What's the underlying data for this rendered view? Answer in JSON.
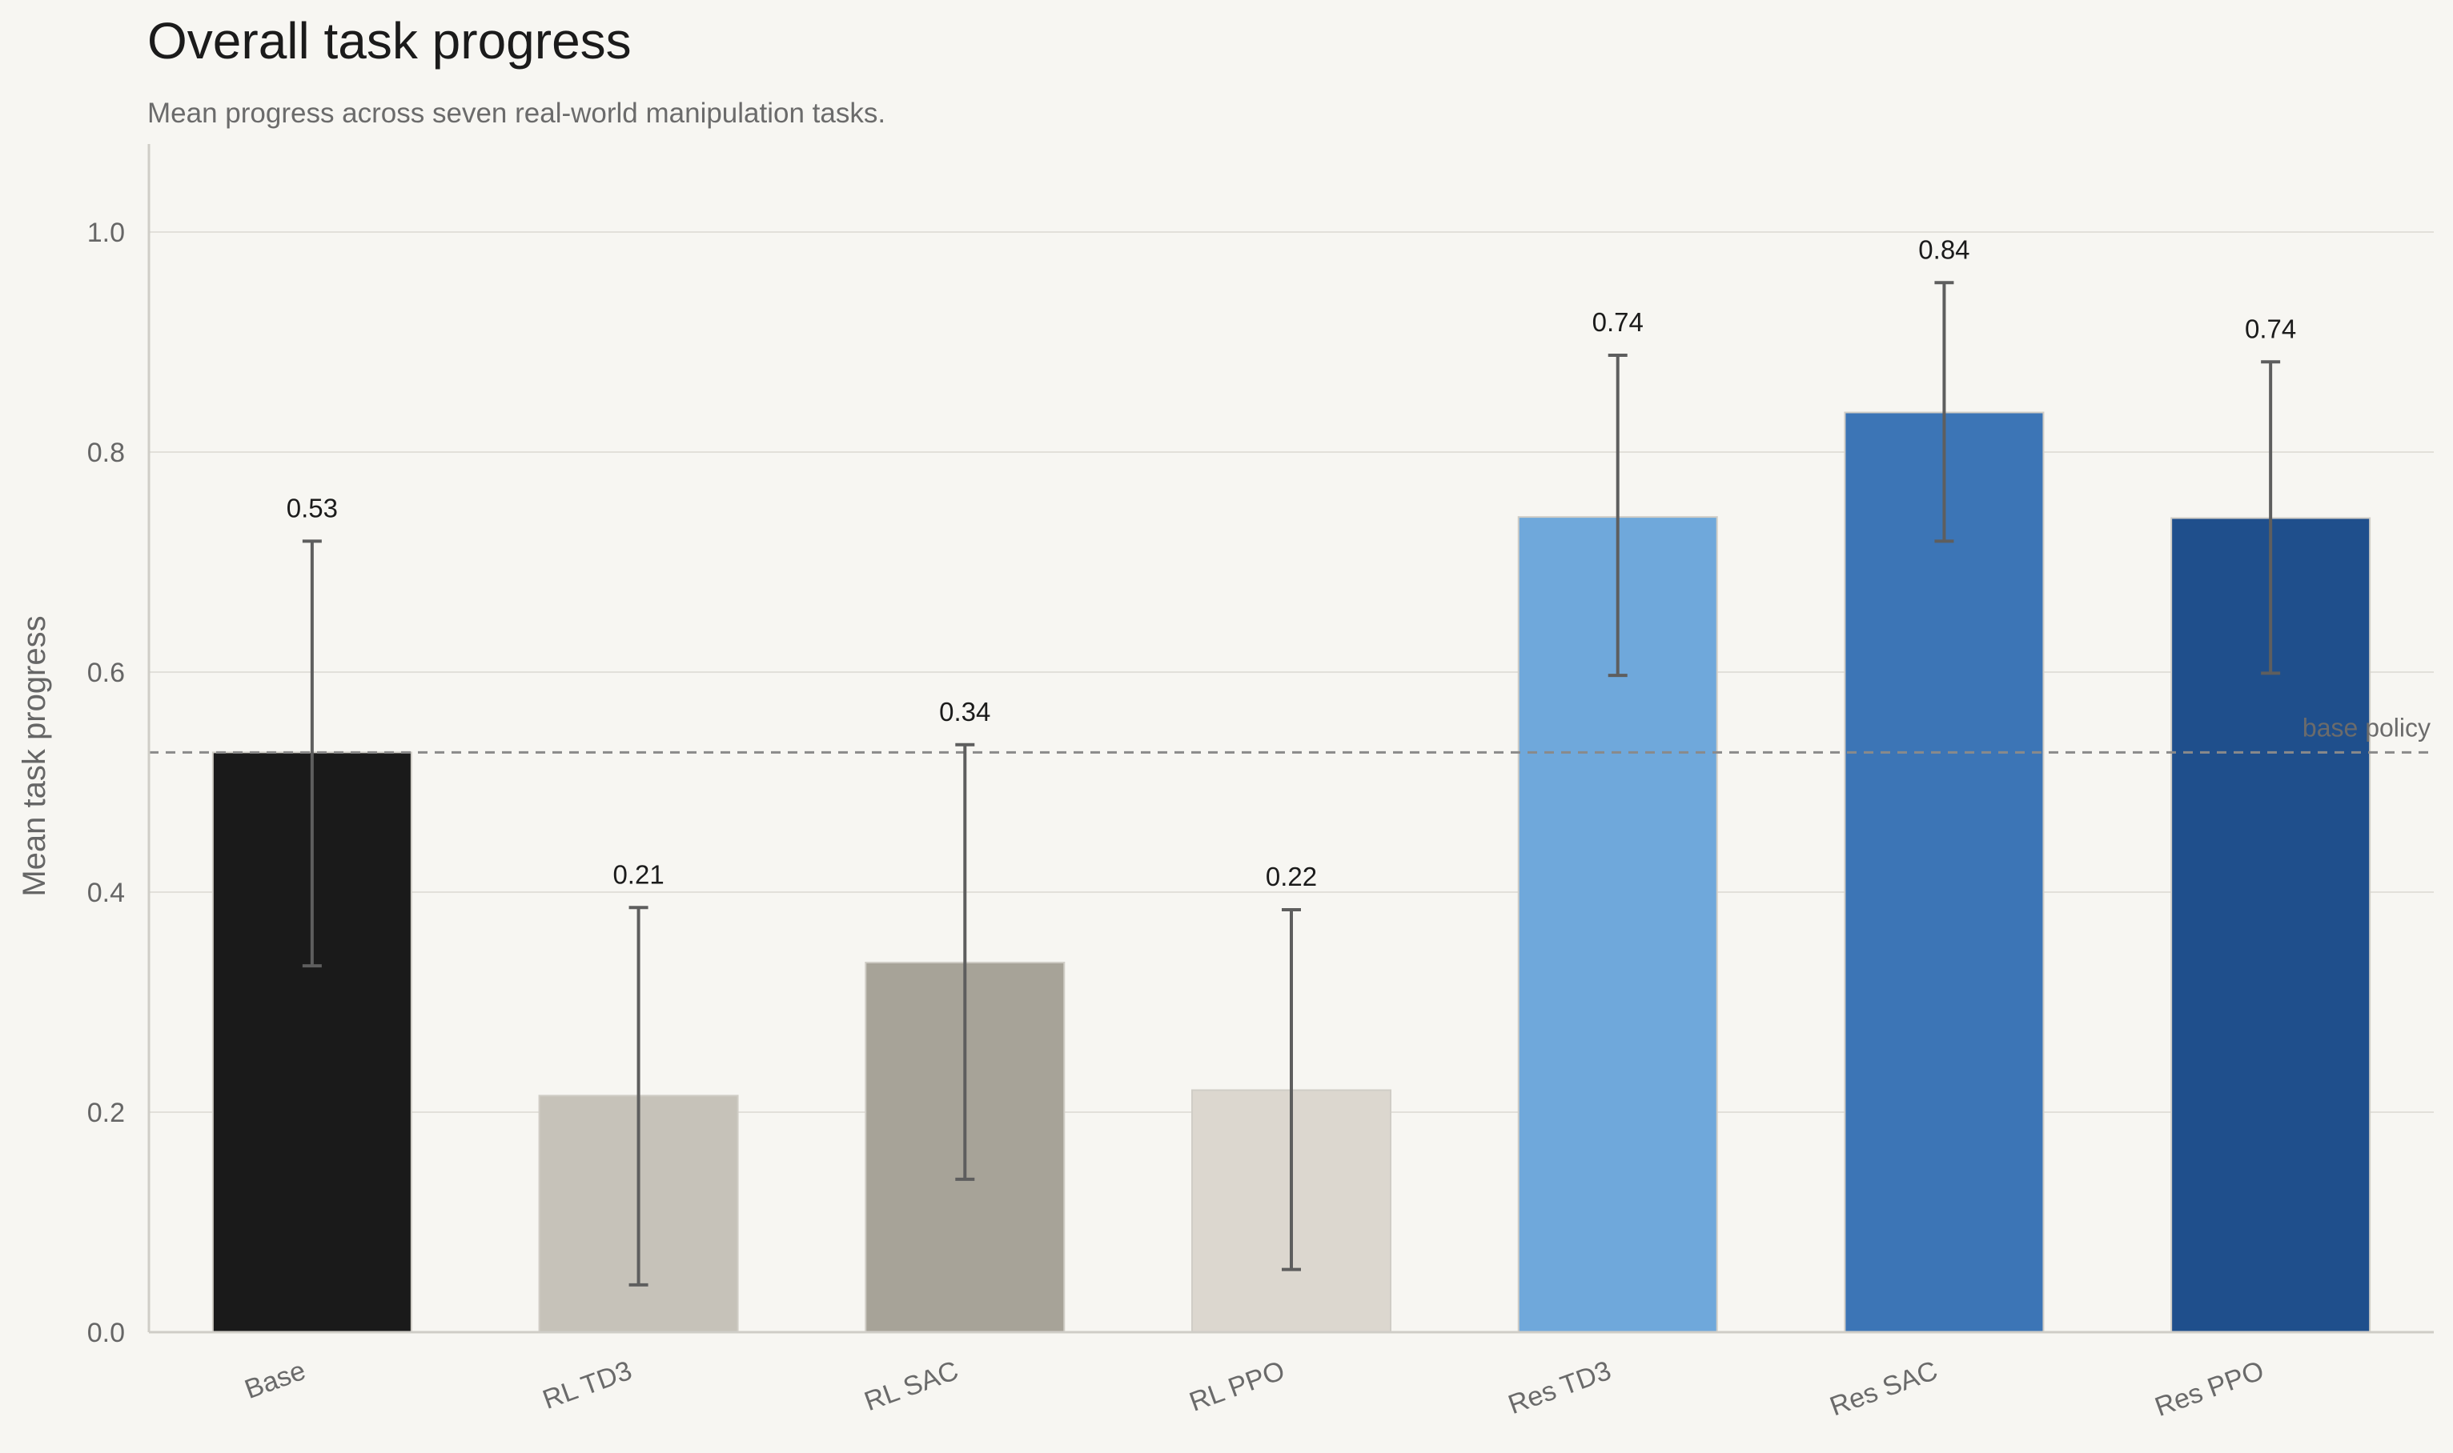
{
  "title": "Overall task progress",
  "subtitle": "Mean progress across seven real-world manipulation tasks.",
  "chart_data": {
    "type": "bar",
    "categories": [
      "Base",
      "RL TD3",
      "RL SAC",
      "RL PPO",
      "Res TD3",
      "Res SAC",
      "Res PPO"
    ],
    "values": [
      0.527,
      0.215,
      0.336,
      0.22,
      0.741,
      0.836,
      0.74
    ],
    "value_labels": [
      "0.53",
      "0.21",
      "0.34",
      "0.22",
      "0.74",
      "0.84",
      "0.74"
    ],
    "error_low": [
      0.333,
      0.043,
      0.139,
      0.057,
      0.597,
      0.719,
      0.599
    ],
    "error_high": [
      0.719,
      0.386,
      0.534,
      0.384,
      0.888,
      0.954,
      0.882
    ],
    "colors": [
      "#1a1a1a",
      "#c6c2b9",
      "#a7a398",
      "#dcd7cf",
      "#6fa8db",
      "#3c75b6",
      "#1f4f8c"
    ],
    "reference_line": {
      "value": 0.527,
      "label": "base policy"
    },
    "ylabel": "Mean task progress",
    "ylim": [
      0,
      1.08
    ],
    "yticks": [
      0.0,
      0.2,
      0.4,
      0.6,
      0.8,
      1.0
    ],
    "ytick_labels": [
      "0.0",
      "0.2",
      "0.4",
      "0.6",
      "0.8",
      "1.0"
    ],
    "grid": "horizontal"
  }
}
